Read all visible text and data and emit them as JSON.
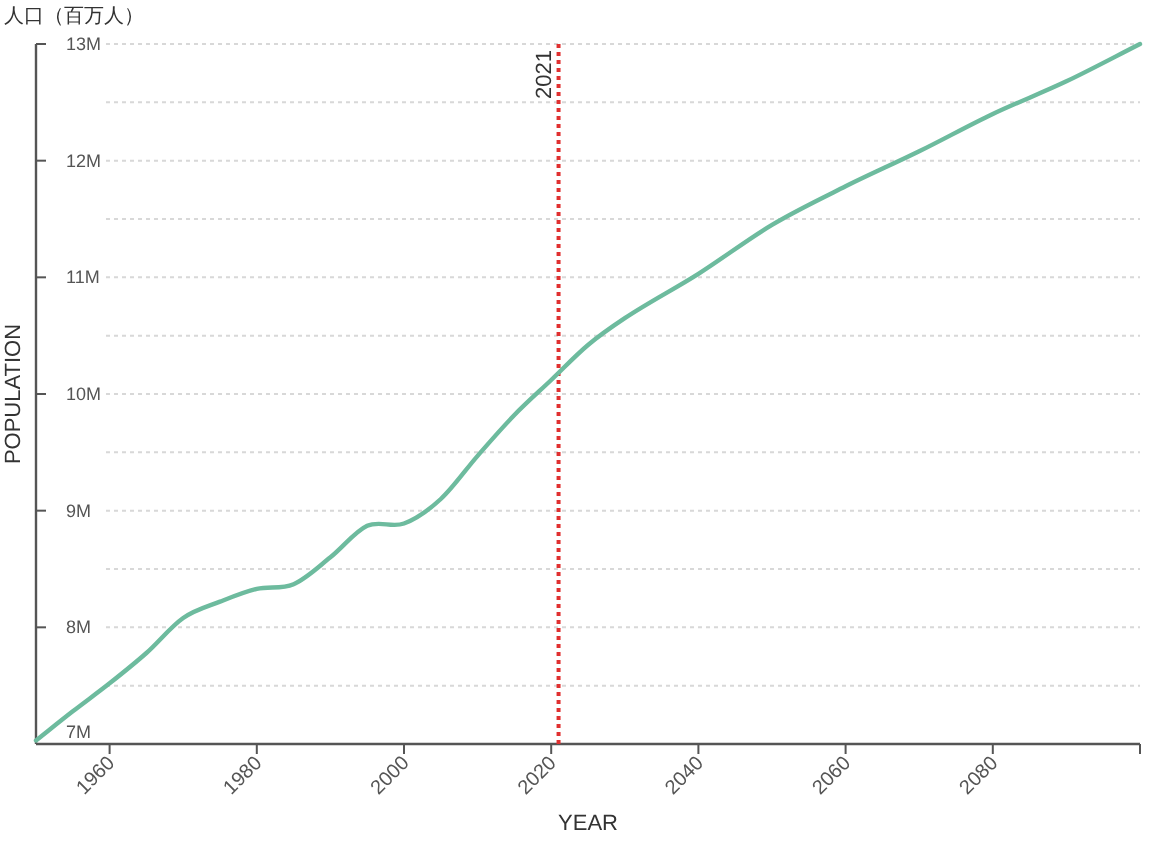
{
  "chart_data": {
    "type": "line",
    "title": "人口（百万人）",
    "xlabel": "YEAR",
    "ylabel": "POPULATION",
    "x": [
      1950,
      1955,
      1960,
      1965,
      1970,
      1975,
      1980,
      1985,
      1990,
      1995,
      2000,
      2005,
      2010,
      2015,
      2020,
      2025,
      2030,
      2040,
      2050,
      2060,
      2070,
      2080,
      2090,
      2100
    ],
    "series": [
      {
        "color": "#6dbb9e",
        "values": [
          7.03,
          7.28,
          7.52,
          7.78,
          8.08,
          8.22,
          8.33,
          8.37,
          8.6,
          8.87,
          8.89,
          9.1,
          9.47,
          9.82,
          10.12,
          10.42,
          10.65,
          11.03,
          11.45,
          11.78,
          12.08,
          12.4,
          12.68,
          13.0
        ]
      }
    ],
    "xlim": [
      1950,
      2100
    ],
    "xticks": [
      1960,
      1980,
      2000,
      2020,
      2040,
      2060,
      2080,
      {
        "value": 2100,
        "label": null
      }
    ],
    "ylim": [
      7,
      13
    ],
    "yticks": [
      {
        "value": 7,
        "label": "7M"
      },
      {
        "value": 7.5,
        "label": null
      },
      {
        "value": 8,
        "label": "8M"
      },
      {
        "value": 8.5,
        "label": null
      },
      {
        "value": 9,
        "label": "9M"
      },
      {
        "value": 9.5,
        "label": null
      },
      {
        "value": 10,
        "label": "10M"
      },
      {
        "value": 10.5,
        "label": null
      },
      {
        "value": 11,
        "label": "11M"
      },
      {
        "value": 11.5,
        "label": null
      },
      {
        "value": 12,
        "label": "12M"
      },
      {
        "value": 12.5,
        "label": null
      },
      {
        "value": 13,
        "label": "13M"
      }
    ],
    "grid": "y",
    "marker": "none",
    "line_style": "solid",
    "ref_lines": [
      {
        "axis": "x",
        "value": 2021,
        "label": "2021",
        "color": "#e03030",
        "line_style": "dotted"
      }
    ]
  }
}
